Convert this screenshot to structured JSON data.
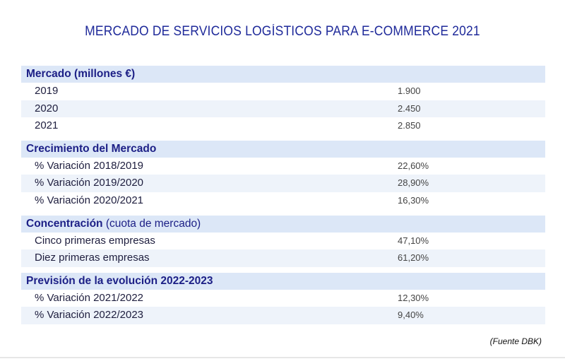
{
  "title": "MERCADO DE SERVICIOS LOGÍSTICOS PARA E-COMMERCE 2021",
  "sections": [
    {
      "header": "Mercado (millones €)",
      "header_extra": "",
      "rows": [
        {
          "label": "2019",
          "value": "1.900"
        },
        {
          "label": "2020",
          "value": "2.450"
        },
        {
          "label": "2021",
          "value": "2.850"
        }
      ]
    },
    {
      "header": "Crecimiento del Mercado",
      "header_extra": "",
      "rows": [
        {
          "label": "% Variación 2018/2019",
          "value": "22,60%"
        },
        {
          "label": "% Variación 2019/2020",
          "value": "28,90%"
        },
        {
          "label": "% Variación 2020/2021",
          "value": "16,30%"
        }
      ]
    },
    {
      "header": "Concentración",
      "header_extra": " (cuota de mercado)",
      "rows": [
        {
          "label": "Cinco primeras empresas",
          "value": "47,10%"
        },
        {
          "label": "Diez primeras empresas",
          "value": "61,20%"
        }
      ]
    },
    {
      "header": "Previsión de la evolución 2022-2023",
      "header_extra": "",
      "rows": [
        {
          "label": "% Variación 2021/2022",
          "value": "12,30%"
        },
        {
          "label": "% Variación 2022/2023",
          "value": "9,40%"
        }
      ]
    }
  ],
  "source": "(Fuente DBK)",
  "colors": {
    "title": "#1f2a9a",
    "header_bg": "#dce7f7",
    "header_text": "#1c1f86",
    "alt_row_bg": "#eef3fa"
  }
}
